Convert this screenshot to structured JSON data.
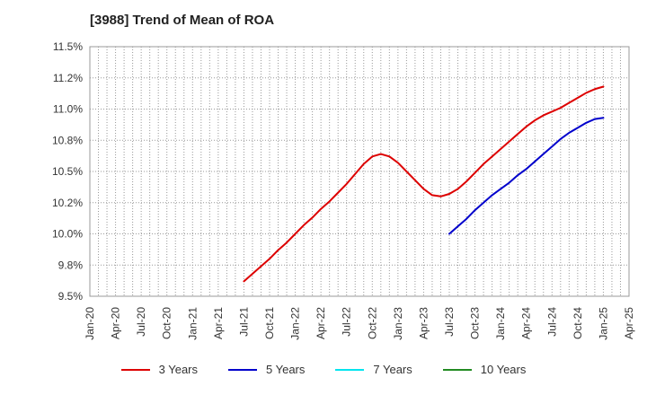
{
  "title": "[3988]  Trend of Mean of ROA",
  "chart_data": {
    "type": "line",
    "title": "[3988]  Trend of Mean of ROA",
    "xlabel": "",
    "ylabel": "",
    "x_ticks": [
      "Jan-20",
      "Apr-20",
      "Jul-20",
      "Oct-20",
      "Jan-21",
      "Apr-21",
      "Jul-21",
      "Oct-21",
      "Jan-22",
      "Apr-22",
      "Jul-22",
      "Oct-22",
      "Jan-23",
      "Apr-23",
      "Jul-23",
      "Oct-23",
      "Jan-24",
      "Apr-24",
      "Jul-24",
      "Oct-24",
      "Jan-25",
      "Apr-25"
    ],
    "y_ticks": [
      "9.5%",
      "9.8%",
      "10.0%",
      "10.2%",
      "10.5%",
      "10.8%",
      "11.0%",
      "11.2%",
      "11.5%"
    ],
    "ylim": [
      9.5,
      11.5
    ],
    "grid": true,
    "legend_position": "bottom",
    "series": [
      {
        "name": "3 Years",
        "color": "#dd0000",
        "points": [
          [
            "Jul-21",
            9.62
          ],
          [
            "Aug-21",
            9.68
          ],
          [
            "Sep-21",
            9.74
          ],
          [
            "Oct-21",
            9.8
          ],
          [
            "Nov-21",
            9.87
          ],
          [
            "Dec-21",
            9.93
          ],
          [
            "Jan-22",
            10.0
          ],
          [
            "Feb-22",
            10.07
          ],
          [
            "Mar-22",
            10.13
          ],
          [
            "Apr-22",
            10.2
          ],
          [
            "May-22",
            10.26
          ],
          [
            "Jun-22",
            10.33
          ],
          [
            "Jul-22",
            10.4
          ],
          [
            "Aug-22",
            10.48
          ],
          [
            "Sep-22",
            10.56
          ],
          [
            "Oct-22",
            10.62
          ],
          [
            "Nov-22",
            10.64
          ],
          [
            "Dec-22",
            10.62
          ],
          [
            "Jan-23",
            10.57
          ],
          [
            "Feb-23",
            10.5
          ],
          [
            "Mar-23",
            10.43
          ],
          [
            "Apr-23",
            10.36
          ],
          [
            "May-23",
            10.31
          ],
          [
            "Jun-23",
            10.3
          ],
          [
            "Jul-23",
            10.32
          ],
          [
            "Aug-23",
            10.36
          ],
          [
            "Sep-23",
            10.42
          ],
          [
            "Oct-23",
            10.49
          ],
          [
            "Nov-23",
            10.56
          ],
          [
            "Dec-23",
            10.62
          ],
          [
            "Jan-24",
            10.68
          ],
          [
            "Feb-24",
            10.74
          ],
          [
            "Mar-24",
            10.8
          ],
          [
            "Apr-24",
            10.86
          ],
          [
            "May-24",
            10.91
          ],
          [
            "Jun-24",
            10.95
          ],
          [
            "Jul-24",
            10.98
          ],
          [
            "Aug-24",
            11.01
          ],
          [
            "Sep-24",
            11.05
          ],
          [
            "Oct-24",
            11.09
          ],
          [
            "Nov-24",
            11.13
          ],
          [
            "Dec-24",
            11.16
          ],
          [
            "Jan-25",
            11.18
          ]
        ]
      },
      {
        "name": "5 Years",
        "color": "#0000cc",
        "points": [
          [
            "Jul-23",
            10.0
          ],
          [
            "Aug-23",
            10.06
          ],
          [
            "Sep-23",
            10.12
          ],
          [
            "Oct-23",
            10.19
          ],
          [
            "Nov-23",
            10.25
          ],
          [
            "Dec-23",
            10.31
          ],
          [
            "Jan-24",
            10.36
          ],
          [
            "Feb-24",
            10.41
          ],
          [
            "Mar-24",
            10.47
          ],
          [
            "Apr-24",
            10.52
          ],
          [
            "May-24",
            10.58
          ],
          [
            "Jun-24",
            10.64
          ],
          [
            "Jul-24",
            10.7
          ],
          [
            "Aug-24",
            10.76
          ],
          [
            "Sep-24",
            10.81
          ],
          [
            "Oct-24",
            10.85
          ],
          [
            "Nov-24",
            10.89
          ],
          [
            "Dec-24",
            10.92
          ],
          [
            "Jan-25",
            10.93
          ]
        ]
      },
      {
        "name": "7 Years",
        "color": "#00e5ee",
        "points": []
      },
      {
        "name": "10 Years",
        "color": "#228b22",
        "points": []
      }
    ]
  }
}
